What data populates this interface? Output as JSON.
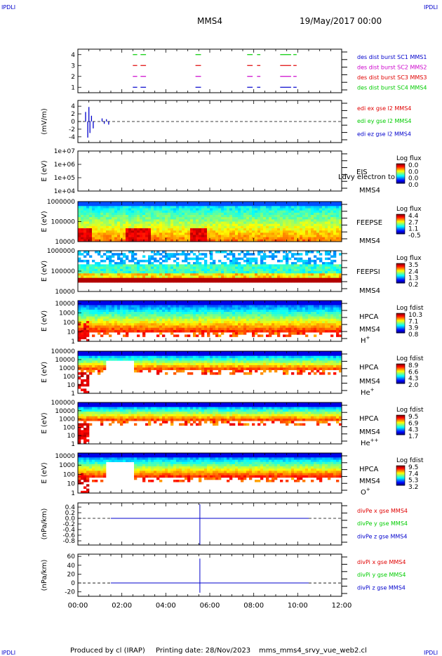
{
  "header": {
    "corner_tl": "IPDLI",
    "corner_tr": "IPDLI",
    "corner_bl": "IPDLI",
    "corner_br": "IPDLI",
    "spacecraft": "MMS4",
    "datetime": "19/May/2017 00:00"
  },
  "footer": {
    "produced_by": "Produced by cl (IRAP)",
    "printing_date": "Printing date: 28/Nov/2023",
    "filename": "mms_mms4_srvy_vue_web2.cl"
  },
  "colors": {
    "red": "#e00000",
    "green": "#00cc00",
    "blue": "#0000cc",
    "magenta": "#cc00cc"
  },
  "chart_data": [
    {
      "type": "line",
      "id": "p1",
      "ylim": [
        0.5,
        4.5
      ],
      "yticks": [
        "1",
        "2",
        "3",
        "4"
      ],
      "legend": [
        {
          "text": "des dist burst SC1 MMS1",
          "color": "#0000cc"
        },
        {
          "text": "des dist burst SC2 MMS2",
          "color": "#cc00cc"
        },
        {
          "text": "des dist burst SC3 MMS3",
          "color": "#e00000"
        },
        {
          "text": "des dist burst SC4 MMS4",
          "color": "#00cc00"
        }
      ],
      "series": [
        {
          "level": 4,
          "color": "#00cc00",
          "intervals": [
            [
              2.5,
              2.7
            ],
            [
              2.85,
              3.1
            ],
            [
              5.35,
              5.6
            ],
            [
              7.7,
              7.95
            ],
            [
              8.15,
              8.3
            ],
            [
              9.2,
              9.7
            ],
            [
              9.8,
              9.95
            ]
          ]
        },
        {
          "level": 3,
          "color": "#e00000",
          "intervals": [
            [
              2.5,
              2.7
            ],
            [
              2.85,
              3.1
            ],
            [
              5.35,
              5.6
            ],
            [
              7.7,
              7.95
            ],
            [
              8.15,
              8.3
            ],
            [
              9.2,
              9.7
            ],
            [
              9.8,
              9.95
            ]
          ]
        },
        {
          "level": 2,
          "color": "#cc00cc",
          "intervals": [
            [
              2.5,
              2.7
            ],
            [
              2.85,
              3.1
            ],
            [
              5.35,
              5.6
            ],
            [
              7.7,
              7.95
            ],
            [
              8.15,
              8.3
            ],
            [
              9.2,
              9.7
            ],
            [
              9.8,
              9.95
            ]
          ]
        },
        {
          "level": 1,
          "color": "#0000cc",
          "intervals": [
            [
              2.5,
              2.7
            ],
            [
              2.85,
              3.1
            ],
            [
              5.35,
              5.6
            ],
            [
              7.7,
              7.95
            ],
            [
              8.15,
              8.3
            ],
            [
              9.2,
              9.7
            ],
            [
              9.8,
              9.95
            ]
          ]
        }
      ]
    },
    {
      "type": "line",
      "id": "p2",
      "ylabel": "(mV/m)",
      "ylim": [
        -5.5,
        5.5
      ],
      "yticks": [
        "4",
        "2",
        "0",
        "-2",
        "-4"
      ],
      "ytick_values": [
        4,
        2,
        0,
        -2,
        -4
      ],
      "legend": [
        {
          "text": "edi ex gse l2 MMS4",
          "color": "#e00000"
        },
        {
          "text": "edi ey gse l2 MMS4",
          "color": "#00cc00"
        },
        {
          "text": "edi ez gse l2 MMS4",
          "color": "#0000cc"
        }
      ],
      "zero_line": true
    },
    {
      "type": "heatmap",
      "id": "p3",
      "ylabel": "E (eV)",
      "yticks": [
        "1e+07",
        "1e+06",
        "1e+05",
        "1e+04"
      ],
      "ytick_values": [
        7,
        6,
        5,
        4
      ],
      "ylim": [
        4,
        7
      ],
      "instrument": "EIS",
      "overlay_text": "Ldvy electron to",
      "spacecraft": "MMS4",
      "cbar_title": "Log flux",
      "cbar_ticks": [
        "0.0",
        "0.0",
        "0.0",
        "0.0"
      ],
      "empty": true
    },
    {
      "type": "heatmap",
      "id": "p4",
      "ylabel": "E (eV)",
      "yticks": [
        "1000000",
        "100000",
        "10000"
      ],
      "ytick_values": [
        6,
        5,
        4
      ],
      "ylim": [
        4,
        6
      ],
      "instrument": "FEEPSE",
      "spacecraft": "MMS4",
      "cbar_title": "Log flux",
      "cbar_ticks": [
        "4.4",
        "2.7",
        "1.1",
        "-0.5"
      ]
    },
    {
      "type": "heatmap",
      "id": "p5",
      "ylabel": "E (eV)",
      "yticks": [
        "1000000",
        "100000",
        "10000"
      ],
      "ytick_values": [
        6,
        5,
        4
      ],
      "ylim": [
        4,
        6
      ],
      "instrument": "FEEPSI",
      "spacecraft": "MMS4",
      "cbar_title": "Log flux",
      "cbar_ticks": [
        "3.5",
        "2.4",
        "1.3",
        "0.2"
      ]
    },
    {
      "type": "heatmap",
      "id": "p6",
      "ylabel": "E (eV)",
      "yticks": [
        "10000",
        "1000",
        "100",
        "10",
        "1"
      ],
      "ytick_values": [
        4,
        3,
        2,
        1,
        0
      ],
      "ylim": [
        0,
        4.3
      ],
      "instrument": "HPCA",
      "spacecraft": "MMS4",
      "species": "H",
      "species_sup": "+",
      "cbar_title": "Log fdist",
      "cbar_ticks": [
        "10.3",
        "7.1",
        "3.9",
        "0.8"
      ]
    },
    {
      "type": "heatmap",
      "id": "p7",
      "ylabel": "E (eV)",
      "yticks": [
        "100000",
        "10000",
        "1000",
        "100",
        "10",
        "1"
      ],
      "ytick_values": [
        5,
        4,
        3,
        2,
        1,
        0
      ],
      "ylim": [
        0,
        5
      ],
      "instrument": "HPCA",
      "spacecraft": "MMS4",
      "species": "He",
      "species_sup": "+",
      "cbar_title": "Log fdist",
      "cbar_ticks": [
        "8.9",
        "6.6",
        "4.3",
        "2.0"
      ]
    },
    {
      "type": "heatmap",
      "id": "p8",
      "ylabel": "E (eV)",
      "yticks": [
        "100000",
        "10000",
        "1000",
        "100",
        "10",
        "1"
      ],
      "ytick_values": [
        5,
        4,
        3,
        2,
        1,
        0
      ],
      "ylim": [
        0,
        5
      ],
      "instrument": "HPCA",
      "spacecraft": "MMS4",
      "species": "He",
      "species_sup": "++",
      "cbar_title": "Log fdist",
      "cbar_ticks": [
        "9.5",
        "6.9",
        "4.3",
        "1.7"
      ]
    },
    {
      "type": "heatmap",
      "id": "p9",
      "ylabel": "E (eV)",
      "yticks": [
        "10000",
        "1000",
        "100",
        "10",
        "1"
      ],
      "ytick_values": [
        4,
        3,
        2,
        1,
        0
      ],
      "ylim": [
        0,
        4.3
      ],
      "instrument": "HPCA",
      "spacecraft": "MMS4",
      "species": "O",
      "species_sup": "+",
      "cbar_title": "Log fdist",
      "cbar_ticks": [
        "9.5",
        "7.4",
        "5.3",
        "3.2"
      ]
    },
    {
      "type": "line",
      "id": "p10",
      "ylabel": "(nPa/km)",
      "ylim": [
        -0.95,
        0.55
      ],
      "yticks": [
        "0.4",
        "0.2",
        "0.0",
        "-0.2",
        "-0.4",
        "-0.6",
        "-0.8"
      ],
      "ytick_values": [
        0.4,
        0.2,
        0.0,
        -0.2,
        -0.4,
        -0.6,
        -0.8
      ],
      "legend": [
        {
          "text": "divPe x gse MMS4",
          "color": "#e00000"
        },
        {
          "text": "divPe y gse MMS4",
          "color": "#00cc00"
        },
        {
          "text": "divPe z gse MMS4",
          "color": "#0000cc"
        }
      ],
      "zero_line": true
    },
    {
      "type": "line",
      "id": "p11",
      "ylabel": "(nPa/km)",
      "ylim": [
        -30,
        65
      ],
      "yticks": [
        "60",
        "40",
        "20",
        "0",
        "-20"
      ],
      "ytick_values": [
        60,
        40,
        20,
        0,
        -20
      ],
      "legend": [
        {
          "text": "divPi x gse MMS4",
          "color": "#e00000"
        },
        {
          "text": "divPi y gse MMS4",
          "color": "#00cc00"
        },
        {
          "text": "divPi z gse MMS4",
          "color": "#0000cc"
        }
      ],
      "zero_line": true
    }
  ],
  "xaxis": {
    "xlim": [
      0,
      12
    ],
    "ticks": [
      "00:00",
      "02:00",
      "04:00",
      "06:00",
      "08:00",
      "10:00",
      "12:00"
    ],
    "tick_values": [
      0,
      2,
      4,
      6,
      8,
      10,
      12
    ]
  }
}
